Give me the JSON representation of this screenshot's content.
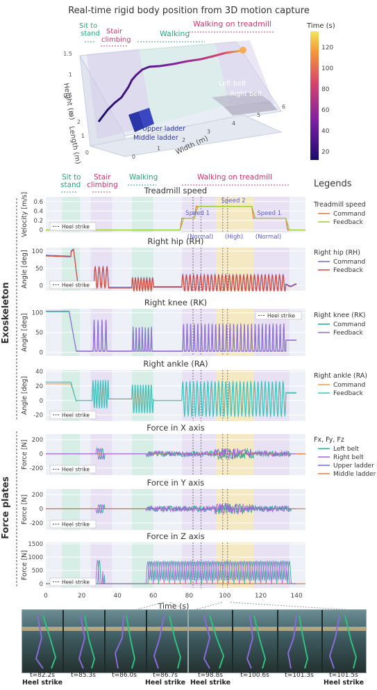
{
  "top": {
    "title": "Real-time rigid body position from 3D motion capture",
    "phase_labels": [
      "Sit to\nstand",
      "Stair\nclimbing",
      "Walking",
      "Walking on treadmill"
    ],
    "axis_height": "Height (m)",
    "axis_length": "Length (m)",
    "axis_width": "Width (m)",
    "height_ticks": [
      "0",
      "0.5",
      "1",
      "1.5"
    ],
    "length_ticks": [
      "0",
      "1",
      "2"
    ],
    "width_ticks": [
      "0",
      "1",
      "2",
      "3",
      "4",
      "5",
      "6"
    ],
    "label_left_belt": "Left belt",
    "label_right_belt": "Right belt",
    "label_upper_ladder": "Upper ladder",
    "label_middle_ladder": "Middle ladder",
    "colorbar_title": "Time (s)",
    "colorbar_ticks": [
      "120",
      "100",
      "80",
      "60",
      "40",
      "20"
    ]
  },
  "phases": {
    "labels": [
      "Sit to\nstand",
      "Stair\nclimbing",
      "Walking",
      "Walking on treadmill"
    ],
    "colors": [
      "#2aa876",
      "#d6336c",
      "#2aa876",
      "#d6336c"
    ]
  },
  "legends_title": "Legends",
  "group_labels": {
    "exoskeleton": "Exoskeleton",
    "force_plates": "Force plates"
  },
  "heel_strike_label": "Heel strike",
  "x_axis": {
    "label": "Time (s)",
    "ticks": [
      "0",
      "20",
      "40",
      "60",
      "80",
      "100",
      "120",
      "140"
    ],
    "range": [
      0,
      145
    ]
  },
  "legend_groups": [
    {
      "title": "Treadmill speed",
      "items": [
        {
          "name": "Command",
          "color": "#e8734a"
        },
        {
          "name": "Feedback",
          "color": "#9acd32"
        }
      ]
    },
    {
      "title": "Right hip (RH)",
      "items": [
        {
          "name": "Command",
          "color": "#6a6fd6"
        },
        {
          "name": "Feedback",
          "color": "#d64a3a"
        }
      ]
    },
    {
      "title": "Right knee (RK)",
      "items": [
        {
          "name": "Command",
          "color": "#1fae8c"
        },
        {
          "name": "Feedback",
          "color": "#9b6fd9"
        }
      ]
    },
    {
      "title": "Right ankle (RA)",
      "items": [
        {
          "name": "Command",
          "color": "#f09a3e"
        },
        {
          "name": "Feedback",
          "color": "#3cc6c6"
        }
      ]
    },
    {
      "title": "Fx, Fy, Fz",
      "items": [
        {
          "name": "Left belt",
          "color": "#1fae8c"
        },
        {
          "name": "Right belt",
          "color": "#a65ee0"
        },
        {
          "name": "Upper ladder",
          "color": "#6a6fd6"
        },
        {
          "name": "Middle ladder",
          "color": "#f07a3a"
        }
      ]
    }
  ],
  "speed_annotations": {
    "speed1_a": "Speed 1",
    "normal_a": "(Normal)",
    "speed2": "Speed 2",
    "high": "(High)",
    "speed1_b": "Speed 1",
    "normal_b": "(Normal)"
  },
  "photo_captions": [
    {
      "time": "t=82.2s",
      "note": "Heel strike"
    },
    {
      "time": "t=85.3s",
      "note": ""
    },
    {
      "time": "t=86.0s",
      "note": ""
    },
    {
      "time": "t=86.7s",
      "note": "Heel strike"
    },
    {
      "time": "t=98.8s",
      "note": "Heel strike"
    },
    {
      "time": "t=100.6s",
      "note": ""
    },
    {
      "time": "t=101.3s",
      "note": ""
    },
    {
      "time": "t=101.5s",
      "note": "Heel strike"
    }
  ],
  "chart_data": [
    {
      "type": "line",
      "title": "Treadmill speed",
      "ylabel": "Velocity [m/s]",
      "yticks": [
        0,
        0.2,
        0.4,
        0.6
      ],
      "ylim": [
        -0.05,
        0.7
      ],
      "series": [
        {
          "name": "Command",
          "x": [
            0,
            75,
            76,
            83,
            84,
            95,
            96,
            115,
            116,
            134,
            135,
            145
          ],
          "values": [
            0,
            0,
            0.25,
            0.25,
            0.5,
            0.5,
            0.5,
            0.5,
            0.25,
            0.25,
            0,
            0
          ]
        },
        {
          "name": "Feedback",
          "x": [
            0,
            75,
            77,
            83,
            85,
            95,
            96,
            115,
            117,
            134,
            136,
            145
          ],
          "values": [
            0,
            0,
            0.25,
            0.25,
            0.5,
            0.5,
            0.5,
            0.5,
            0.25,
            0.25,
            0,
            0
          ]
        }
      ]
    },
    {
      "type": "line",
      "title": "Right hip (RH)",
      "ylabel": "Angle [deg]",
      "yticks": [
        0,
        50,
        100
      ],
      "ylim": [
        -15,
        110
      ]
    },
    {
      "type": "line",
      "title": "Right knee (RK)",
      "ylabel": "Angle [deg]",
      "yticks": [
        0,
        50,
        100
      ],
      "ylim": [
        -10,
        110
      ]
    },
    {
      "type": "line",
      "title": "Right ankle (RA)",
      "ylabel": "Angle [deg]",
      "yticks": [
        -20,
        0,
        20,
        40
      ],
      "ylim": [
        -28,
        42
      ]
    },
    {
      "type": "line",
      "title": "Force in X axis",
      "ylabel": "Force [N]",
      "yticks": [
        -200,
        0,
        200
      ],
      "ylim": [
        -300,
        280
      ]
    },
    {
      "type": "line",
      "title": "Force in Y axis",
      "ylabel": "Force [N]",
      "yticks": [
        -200,
        0,
        200
      ],
      "ylim": [
        -300,
        280
      ]
    },
    {
      "type": "line",
      "title": "Force in Z axis",
      "ylabel": "Force [N]",
      "yticks": [
        0,
        500,
        1000,
        1500
      ],
      "ylim": [
        -150,
        1550
      ]
    }
  ],
  "colors": {
    "phase_green": "#2aa876",
    "phase_pink": "#d6336c",
    "band_green": "#cfeee0",
    "band_purple": "#e6dcf1",
    "band_yellow": "#f7e7b3",
    "panel_bg": "#eef0f8"
  }
}
